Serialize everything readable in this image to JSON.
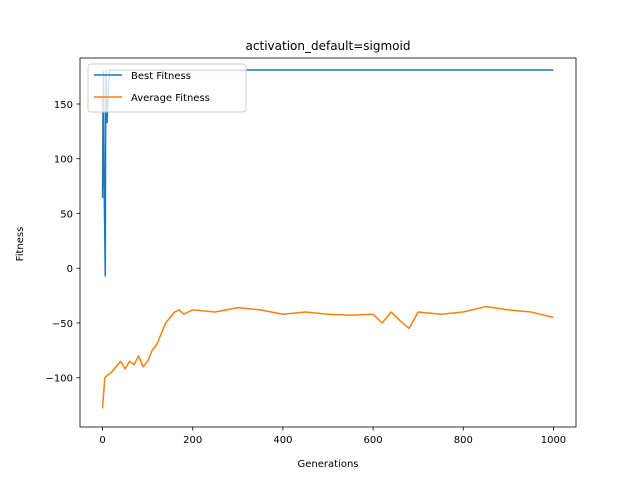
{
  "chart_data": {
    "type": "line",
    "title": "activation_default=sigmoid",
    "xlabel": "Generations",
    "ylabel": "Fitness",
    "xlim": [
      -50,
      1050
    ],
    "ylim": [
      -145,
      192
    ],
    "xticks": [
      0,
      200,
      400,
      600,
      800,
      1000
    ],
    "xtick_labels": [
      "0",
      "200",
      "400",
      "600",
      "800",
      "1000"
    ],
    "yticks": [
      -100,
      -50,
      0,
      50,
      100,
      150
    ],
    "ytick_labels": [
      "−100",
      "−50",
      "0",
      "50",
      "100",
      "150"
    ],
    "grid": false,
    "legend_position": "top-left",
    "series": [
      {
        "name": "Best Fitness",
        "color": "#1f77b4",
        "x": [
          0,
          1,
          2,
          3,
          4,
          5,
          6,
          7,
          8,
          10,
          15,
          20,
          100,
          200,
          400,
          600,
          800,
          1000
        ],
        "y": [
          64,
          150,
          180,
          100,
          60,
          30,
          -7,
          150,
          181,
          133,
          181,
          181,
          181,
          181,
          181,
          181,
          181,
          181
        ]
      },
      {
        "name": "Average Fitness",
        "color": "#ff7f0e",
        "x": [
          0,
          5,
          10,
          20,
          30,
          40,
          50,
          60,
          70,
          80,
          90,
          100,
          110,
          120,
          130,
          140,
          150,
          160,
          170,
          180,
          200,
          250,
          300,
          350,
          400,
          450,
          500,
          550,
          600,
          620,
          640,
          660,
          680,
          700,
          750,
          800,
          850,
          900,
          950,
          1000
        ],
        "y": [
          -128,
          -100,
          -98,
          -95,
          -90,
          -85,
          -92,
          -85,
          -88,
          -80,
          -90,
          -85,
          -75,
          -70,
          -60,
          -50,
          -45,
          -40,
          -38,
          -42,
          -38,
          -40,
          -36,
          -38,
          -42,
          -40,
          -42,
          -43,
          -42,
          -50,
          -40,
          -48,
          -55,
          -40,
          -42,
          -40,
          -35,
          -38,
          -40,
          -45
        ]
      }
    ]
  }
}
